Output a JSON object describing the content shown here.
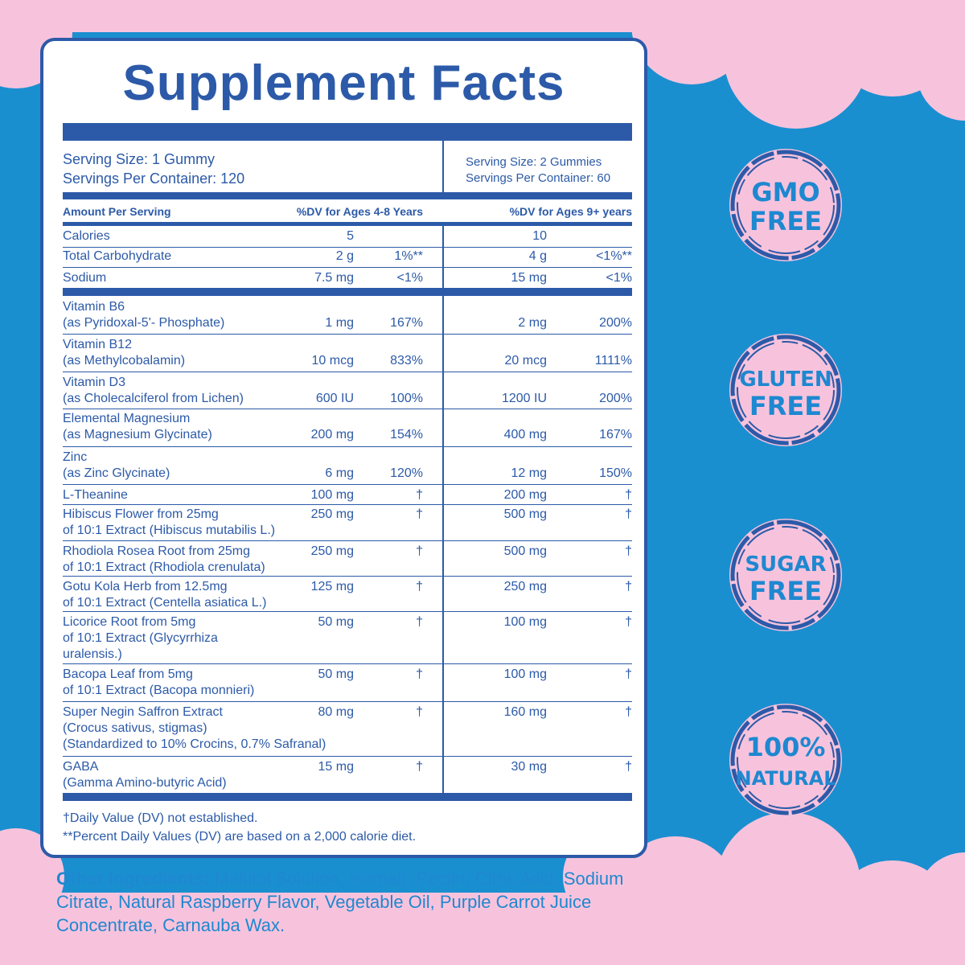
{
  "title": "Supplement Facts",
  "serving_left": {
    "size": "Serving Size: 1 Gummy",
    "per_container": "Servings Per Container: 120"
  },
  "serving_right": {
    "size": "Serving Size: 2 Gummies",
    "per_container": "Servings Per Container: 60"
  },
  "header": {
    "amount": "Amount Per Serving",
    "dv_left": "%DV for Ages 4-8 Years",
    "dv_right": "%DV for Ages 9+ years"
  },
  "basics": [
    {
      "name": "Calories",
      "a1": "5",
      "d1": "",
      "a2": "10",
      "d2": ""
    },
    {
      "name": "Total Carbohydrate",
      "a1": "2 g",
      "d1": "1%**",
      "a2": "4 g",
      "d2": "<1%**"
    },
    {
      "name": "Sodium",
      "a1": "7.5 mg",
      "d1": "<1%",
      "a2": "15 mg",
      "d2": "<1%"
    }
  ],
  "nutrients": [
    {
      "lines": [
        "Vitamin B6",
        "(as Pyridoxal-5'- Phosphate)"
      ],
      "a1": "1 mg",
      "d1": "167%",
      "a2": "2 mg",
      "d2": "200%"
    },
    {
      "lines": [
        "Vitamin B12",
        "(as Methylcobalamin)"
      ],
      "a1": "10 mcg",
      "d1": "833%",
      "a2": "20 mcg",
      "d2": "1111%"
    },
    {
      "lines": [
        "Vitamin D3",
        "(as Cholecalciferol from Lichen)"
      ],
      "a1": "600 IU",
      "d1": "100%",
      "a2": "1200 IU",
      "d2": "200%"
    },
    {
      "lines": [
        "Elemental Magnesium",
        "(as Magnesium Glycinate)"
      ],
      "a1": "200 mg",
      "d1": "154%",
      "a2": "400 mg",
      "d2": "167%"
    },
    {
      "lines": [
        "Zinc",
        "(as Zinc Glycinate)"
      ],
      "a1": "6 mg",
      "d1": "120%",
      "a2": "12 mg",
      "d2": "150%"
    },
    {
      "lines": [
        "L-Theanine"
      ],
      "a1": "100 mg",
      "d1": "†",
      "a2": "200 mg",
      "d2": "†"
    },
    {
      "lines": [
        "Hibiscus Flower from 25mg",
        "of 10:1 Extract (Hibiscus mutabilis L.)"
      ],
      "a1": "250 mg",
      "d1": "†",
      "a2": "500 mg",
      "d2": "†"
    },
    {
      "lines": [
        "Rhodiola Rosea Root from 25mg",
        "of 10:1 Extract (Rhodiola crenulata)"
      ],
      "a1": "250 mg",
      "d1": "†",
      "a2": "500 mg",
      "d2": "†"
    },
    {
      "lines": [
        "Gotu Kola Herb from 12.5mg",
        "of 10:1 Extract (Centella asiatica L.)"
      ],
      "a1": "125 mg",
      "d1": "†",
      "a2": "250 mg",
      "d2": "†"
    },
    {
      "lines": [
        "Licorice Root from 5mg",
        "of 10:1 Extract (Glycyrrhiza",
        "uralensis.)"
      ],
      "a1": "50 mg",
      "d1": "†",
      "a2": "100 mg",
      "d2": "†"
    },
    {
      "lines": [
        "Bacopa Leaf from 5mg",
        "of 10:1 Extract (Bacopa monnieri)"
      ],
      "a1": "50 mg",
      "d1": "†",
      "a2": "100 mg",
      "d2": "†"
    },
    {
      "lines": [
        "Super Negin Saffron Extract",
        "(Crocus sativus, stigmas)",
        "(Standardized to 10% Crocins, 0.7% Safranal)"
      ],
      "a1": "80 mg",
      "d1": "†",
      "a2": "160 mg",
      "d2": "†"
    },
    {
      "lines": [
        "GABA",
        "(Gamma Amino-butyric Acid)"
      ],
      "a1": "15 mg",
      "d1": "†",
      "a2": "30 mg",
      "d2": "†"
    }
  ],
  "footnotes": [
    "†Daily Value (DV) not established.",
    "**Percent Daily Values (DV) are based on a  2,000 calorie diet."
  ],
  "other_ingredients": {
    "label": "Other Ingredients:",
    "text": " Maltitol Solution, Isomalt, Pectin, Citric Acid, Sodium Citrate, Natural Raspberry Flavor, Vegetable Oil, Purple Carrot Juice Concentrate, Carnauba Wax."
  },
  "badges": [
    {
      "line1": "GMO",
      "line2": "FREE"
    },
    {
      "line1": "GLUTEN",
      "line2": "FREE"
    },
    {
      "line1": "SUGAR",
      "line2": "FREE"
    },
    {
      "line1": "100%",
      "line2": "NATURAL"
    }
  ],
  "colors": {
    "background": "#1a8fd0",
    "cloud": "#f7c3dc",
    "ink": "#2c5aa8",
    "badge_text": "#1e88d0"
  }
}
